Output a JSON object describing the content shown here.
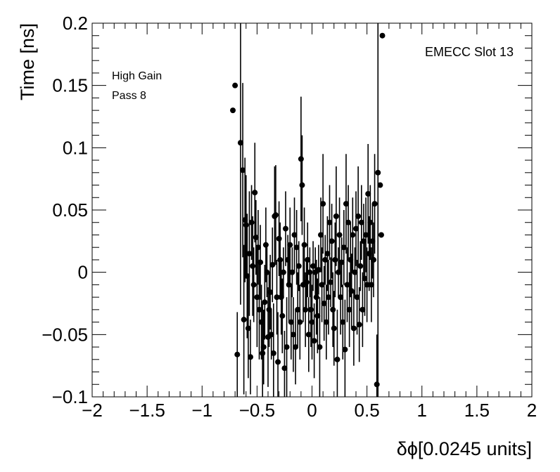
{
  "chart_data": {
    "type": "scatter",
    "title": "",
    "xlabel": "δϕ[0.0245 units]",
    "ylabel": "Time [ns]",
    "xlim": [
      -2,
      2
    ],
    "ylim": [
      -0.1,
      0.2
    ],
    "x_ticks": [
      -2,
      -1.5,
      -1,
      -0.5,
      0,
      0.5,
      1,
      1.5,
      2
    ],
    "x_tick_labels": [
      "−2",
      "−1.5",
      "−1",
      "−0.5",
      "0",
      "0.5",
      "1",
      "1.5",
      "2"
    ],
    "y_ticks": [
      -0.1,
      -0.05,
      0,
      0.05,
      0.1,
      0.15,
      0.2
    ],
    "y_tick_labels": [
      "−0.1",
      "−0.05",
      "0",
      "0.05",
      "0.1",
      "0.15",
      "0.2"
    ],
    "grid": false,
    "marker_color": "#000000",
    "annotations": [
      "High Gain",
      "Pass 8",
      "EMECC Slot 13"
    ],
    "points": [
      {
        "x": -0.72,
        "y": 0.13,
        "err": 0
      },
      {
        "x": -0.7,
        "y": 0.15,
        "err": 0
      },
      {
        "x": -0.68,
        "y": -0.066,
        "err": 0.034
      },
      {
        "x": -0.65,
        "y": 0.104,
        "err": 0.13
      },
      {
        "x": -0.63,
        "y": 0.082,
        "err": 0.07
      },
      {
        "x": -0.62,
        "y": -0.038,
        "err": 0.06
      },
      {
        "x": -0.61,
        "y": 0.042,
        "err": 0.05
      },
      {
        "x": -0.6,
        "y": 0.038,
        "err": 0.04
      },
      {
        "x": -0.59,
        "y": -0.003,
        "err": 0.05
      },
      {
        "x": -0.58,
        "y": -0.045,
        "err": 0.04
      },
      {
        "x": -0.57,
        "y": 0.015,
        "err": 0.05
      },
      {
        "x": -0.56,
        "y": -0.068,
        "err": 0.03
      },
      {
        "x": -0.55,
        "y": 0.04,
        "err": 0.03
      },
      {
        "x": -0.54,
        "y": 0.005,
        "err": 0.04
      },
      {
        "x": -0.53,
        "y": -0.01,
        "err": 0.03
      },
      {
        "x": -0.52,
        "y": 0.064,
        "err": 0.04
      },
      {
        "x": -0.51,
        "y": 0.028,
        "err": 0.03
      },
      {
        "x": -0.5,
        "y": -0.02,
        "err": 0.04
      },
      {
        "x": -0.49,
        "y": 0.02,
        "err": 0.03
      },
      {
        "x": -0.48,
        "y": -0.03,
        "err": 0.04
      },
      {
        "x": -0.47,
        "y": 0.008,
        "err": 0.03
      },
      {
        "x": -0.46,
        "y": -0.04,
        "err": 0.03
      },
      {
        "x": -0.45,
        "y": -0.065,
        "err": 0.04
      },
      {
        "x": -0.44,
        "y": -0.06,
        "err": 0.03
      },
      {
        "x": -0.43,
        "y": -0.024,
        "err": 0.03
      },
      {
        "x": -0.42,
        "y": 0.022,
        "err": 0.03
      },
      {
        "x": -0.41,
        "y": 0.0,
        "err": 0.02
      },
      {
        "x": -0.4,
        "y": -0.052,
        "err": 0.04
      },
      {
        "x": -0.39,
        "y": -0.03,
        "err": 0.03
      },
      {
        "x": -0.38,
        "y": -0.016,
        "err": 0.03
      },
      {
        "x": -0.37,
        "y": -0.05,
        "err": 0.02
      },
      {
        "x": -0.36,
        "y": 0.006,
        "err": 0.03
      },
      {
        "x": -0.35,
        "y": -0.065,
        "err": 0.04
      },
      {
        "x": -0.34,
        "y": 0.045,
        "err": 0.04
      },
      {
        "x": -0.33,
        "y": 0.046,
        "err": 0.04
      },
      {
        "x": -0.32,
        "y": -0.02,
        "err": 0.03
      },
      {
        "x": -0.31,
        "y": -0.072,
        "err": 0.04
      },
      {
        "x": -0.3,
        "y": 0.027,
        "err": 0.03
      },
      {
        "x": -0.29,
        "y": 0.01,
        "err": 0.03
      },
      {
        "x": -0.28,
        "y": -0.02,
        "err": 0.03
      },
      {
        "x": -0.27,
        "y": -0.035,
        "err": 0.03
      },
      {
        "x": -0.26,
        "y": 0.0,
        "err": 0.02
      },
      {
        "x": -0.25,
        "y": -0.077,
        "err": 0.03
      },
      {
        "x": -0.24,
        "y": 0.035,
        "err": 0.03
      },
      {
        "x": -0.23,
        "y": -0.06,
        "err": 0.04
      },
      {
        "x": -0.22,
        "y": 0.01,
        "err": 0.02
      },
      {
        "x": -0.21,
        "y": -0.01,
        "err": 0.03
      },
      {
        "x": -0.2,
        "y": 0.022,
        "err": 0.03
      },
      {
        "x": -0.19,
        "y": -0.04,
        "err": 0.03
      },
      {
        "x": -0.18,
        "y": 0.0,
        "err": 0.02
      },
      {
        "x": -0.17,
        "y": -0.05,
        "err": 0.03
      },
      {
        "x": -0.16,
        "y": 0.03,
        "err": 0.03
      },
      {
        "x": -0.15,
        "y": -0.06,
        "err": 0.03
      },
      {
        "x": -0.14,
        "y": 0.02,
        "err": 0.03
      },
      {
        "x": -0.13,
        "y": -0.03,
        "err": 0.03
      },
      {
        "x": -0.12,
        "y": 0.005,
        "err": 0.02
      },
      {
        "x": -0.11,
        "y": -0.04,
        "err": 0.03
      },
      {
        "x": -0.1,
        "y": 0.091,
        "err": 0.05
      },
      {
        "x": -0.09,
        "y": 0.07,
        "err": 0.04
      },
      {
        "x": -0.08,
        "y": -0.01,
        "err": 0.03
      },
      {
        "x": -0.07,
        "y": 0.022,
        "err": 0.03
      },
      {
        "x": -0.06,
        "y": -0.03,
        "err": 0.03
      },
      {
        "x": -0.05,
        "y": -0.008,
        "err": 0.02
      },
      {
        "x": -0.04,
        "y": 0.01,
        "err": 0.03
      },
      {
        "x": -0.03,
        "y": -0.05,
        "err": 0.03
      },
      {
        "x": -0.02,
        "y": 0.0,
        "err": 0.02
      },
      {
        "x": -0.01,
        "y": -0.03,
        "err": 0.03
      },
      {
        "x": 0.0,
        "y": -0.04,
        "err": 0.03
      },
      {
        "x": 0.01,
        "y": 0.005,
        "err": 0.02
      },
      {
        "x": 0.02,
        "y": -0.055,
        "err": 0.03
      },
      {
        "x": 0.03,
        "y": 0.0,
        "err": 0.02
      },
      {
        "x": 0.04,
        "y": -0.02,
        "err": 0.03
      },
      {
        "x": 0.05,
        "y": -0.035,
        "err": 0.03
      },
      {
        "x": 0.06,
        "y": 0.002,
        "err": 0.02
      },
      {
        "x": 0.07,
        "y": -0.06,
        "err": 0.04
      },
      {
        "x": 0.08,
        "y": 0.03,
        "err": 0.03
      },
      {
        "x": 0.09,
        "y": -0.01,
        "err": 0.03
      },
      {
        "x": 0.1,
        "y": 0.055,
        "err": 0.04
      },
      {
        "x": 0.11,
        "y": -0.025,
        "err": 0.03
      },
      {
        "x": 0.12,
        "y": 0.01,
        "err": 0.02
      },
      {
        "x": 0.13,
        "y": -0.04,
        "err": 0.03
      },
      {
        "x": 0.14,
        "y": 0.015,
        "err": 0.03
      },
      {
        "x": 0.15,
        "y": -0.02,
        "err": 0.03
      },
      {
        "x": 0.16,
        "y": 0.04,
        "err": 0.03
      },
      {
        "x": 0.17,
        "y": -0.008,
        "err": 0.02
      },
      {
        "x": 0.18,
        "y": 0.025,
        "err": 0.03
      },
      {
        "x": 0.19,
        "y": -0.03,
        "err": 0.03
      },
      {
        "x": 0.2,
        "y": -0.045,
        "err": 0.03
      },
      {
        "x": 0.21,
        "y": 0.01,
        "err": 0.03
      },
      {
        "x": 0.22,
        "y": 0.045,
        "err": 0.04
      },
      {
        "x": 0.23,
        "y": -0.07,
        "err": 0.04
      },
      {
        "x": 0.24,
        "y": 0.0,
        "err": 0.02
      },
      {
        "x": 0.25,
        "y": 0.03,
        "err": 0.03
      },
      {
        "x": 0.26,
        "y": -0.02,
        "err": 0.03
      },
      {
        "x": 0.27,
        "y": 0.008,
        "err": 0.02
      },
      {
        "x": 0.28,
        "y": -0.04,
        "err": 0.03
      },
      {
        "x": 0.29,
        "y": 0.02,
        "err": 0.03
      },
      {
        "x": 0.3,
        "y": -0.062,
        "err": 0.04
      },
      {
        "x": 0.31,
        "y": 0.055,
        "err": 0.04
      },
      {
        "x": 0.32,
        "y": -0.01,
        "err": 0.03
      },
      {
        "x": 0.33,
        "y": 0.04,
        "err": 0.03
      },
      {
        "x": 0.34,
        "y": -0.03,
        "err": 0.03
      },
      {
        "x": 0.35,
        "y": 0.01,
        "err": 0.03
      },
      {
        "x": 0.36,
        "y": -0.015,
        "err": 0.03
      },
      {
        "x": 0.37,
        "y": 0.03,
        "err": 0.03
      },
      {
        "x": 0.38,
        "y": -0.045,
        "err": 0.03
      },
      {
        "x": 0.39,
        "y": 0.0,
        "err": 0.02
      },
      {
        "x": 0.4,
        "y": 0.035,
        "err": 0.03
      },
      {
        "x": 0.41,
        "y": -0.02,
        "err": 0.03
      },
      {
        "x": 0.42,
        "y": 0.045,
        "err": 0.04
      },
      {
        "x": 0.43,
        "y": -0.042,
        "err": 0.03
      },
      {
        "x": 0.44,
        "y": 0.005,
        "err": 0.02
      },
      {
        "x": 0.45,
        "y": 0.04,
        "err": 0.03
      },
      {
        "x": 0.46,
        "y": -0.03,
        "err": 0.03
      },
      {
        "x": 0.47,
        "y": 0.025,
        "err": 0.03
      },
      {
        "x": 0.48,
        "y": -0.005,
        "err": 0.03
      },
      {
        "x": 0.49,
        "y": 0.03,
        "err": 0.03
      },
      {
        "x": 0.5,
        "y": -0.01,
        "err": 0.03
      },
      {
        "x": 0.51,
        "y": 0.063,
        "err": 0.04
      },
      {
        "x": 0.52,
        "y": 0.015,
        "err": 0.03
      },
      {
        "x": 0.53,
        "y": 0.04,
        "err": 0.03
      },
      {
        "x": 0.54,
        "y": -0.01,
        "err": 0.03
      },
      {
        "x": 0.55,
        "y": 0.025,
        "err": 0.03
      },
      {
        "x": 0.56,
        "y": 0.01,
        "err": 0.03
      },
      {
        "x": 0.57,
        "y": 0.055,
        "err": 0.04
      },
      {
        "x": 0.59,
        "y": -0.09,
        "err": 0.04
      },
      {
        "x": 0.6,
        "y": 0.08,
        "err": 0.18
      },
      {
        "x": 0.62,
        "y": 0.07,
        "err": 0
      },
      {
        "x": 0.63,
        "y": 0.03,
        "err": 0
      },
      {
        "x": 0.64,
        "y": 0.19,
        "err": 0
      }
    ]
  }
}
